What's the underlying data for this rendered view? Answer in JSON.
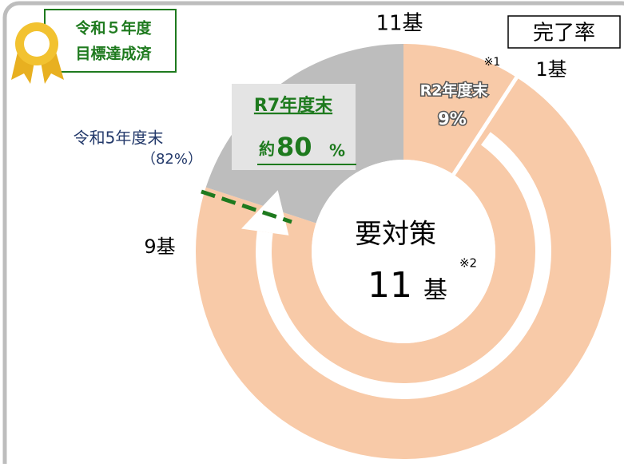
{
  "badge": {
    "lines": [
      "令和５年度",
      "目標達成済"
    ]
  },
  "legend_box": "完了率",
  "top_label": "11基",
  "segment_r2": {
    "note": "※1",
    "count": "1基",
    "label": "R2年度末",
    "rate": "9%"
  },
  "segment_r5": {
    "label": "令和5年度末",
    "rate": "（82%）",
    "count": "9基"
  },
  "target": {
    "label": "R7年度末",
    "prefix": "約",
    "rate": "80",
    "unit": "%"
  },
  "center": {
    "label": "要対策",
    "note": "※2",
    "count": "11",
    "unit": "基"
  }
}
